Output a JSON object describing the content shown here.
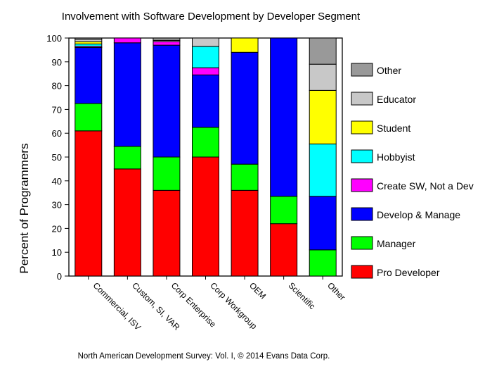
{
  "chart_data": {
    "type": "bar",
    "stacked": true,
    "title": "Involvement with Software Development by Developer Segment",
    "ylabel": "Percent of Programmers",
    "xlabel": "",
    "ylim": [
      0,
      100
    ],
    "yticks": [
      0,
      10,
      20,
      30,
      40,
      50,
      60,
      70,
      80,
      90,
      100
    ],
    "grid": false,
    "legend_position": "right",
    "categories": [
      "Commercial, ISV",
      "Custom, SI, VAR",
      "Corp Enterprise",
      "Corp Workgroup",
      "OEM",
      "Scientific",
      "Other"
    ],
    "series": [
      {
        "name": "Pro Developer",
        "color": "#ff0000",
        "values": [
          61,
          45,
          36,
          50,
          36,
          22,
          0
        ]
      },
      {
        "name": "Manager",
        "color": "#00ff00",
        "values": [
          11.5,
          9.5,
          14,
          12.5,
          11,
          11.5,
          11
        ]
      },
      {
        "name": "Develop & Manage",
        "color": "#0000ff",
        "values": [
          23.5,
          43.5,
          47,
          22,
          47,
          66.5,
          22.5
        ]
      },
      {
        "name": "Create SW, Not a Dev",
        "color": "#ff00ff",
        "values": [
          0.5,
          2,
          1.5,
          3,
          0,
          0,
          0
        ]
      },
      {
        "name": "Hobbyist",
        "color": "#00ffff",
        "values": [
          1,
          0,
          0,
          9,
          0,
          0,
          22
        ]
      },
      {
        "name": "Student",
        "color": "#ffff00",
        "values": [
          1,
          0,
          0,
          0,
          6,
          0,
          22.5
        ]
      },
      {
        "name": "Educator",
        "color": "#c8c8c8",
        "values": [
          1,
          0,
          0.5,
          3.5,
          0,
          0,
          11
        ]
      },
      {
        "name": "Other",
        "color": "#999999",
        "values": [
          0.5,
          0,
          1,
          0,
          0,
          0,
          11
        ]
      }
    ],
    "footnote": "North American Development Survey: Vol. I, © 2014 Evans Data Corp."
  }
}
